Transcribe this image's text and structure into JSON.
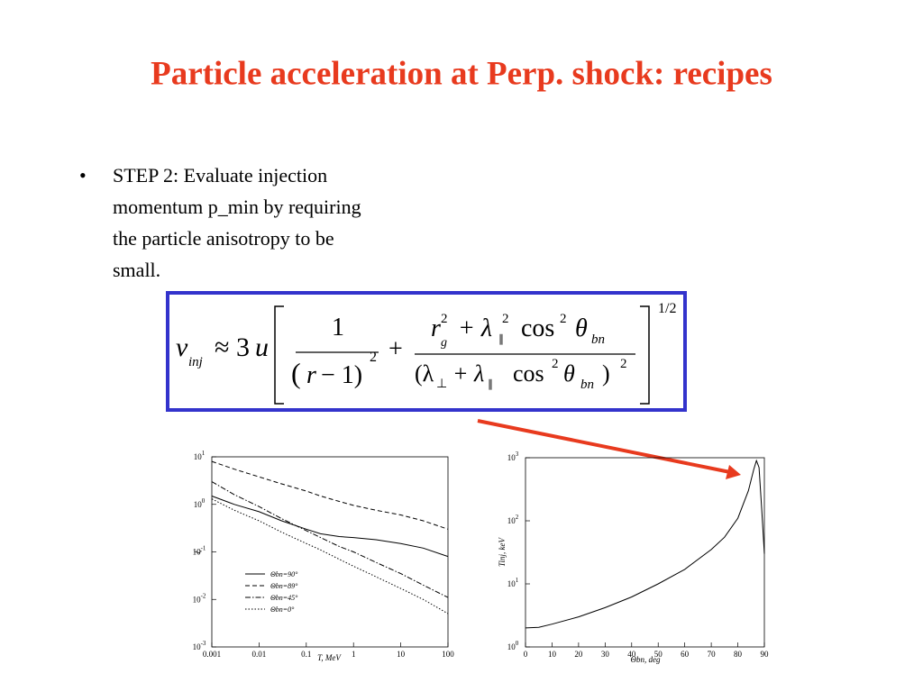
{
  "title": "Particle acceleration at Perp. shock: recipes",
  "bullet": {
    "lines": [
      "STEP 2: Evaluate injection",
      "momentum p_min by requiring",
      "the particle anisotropy to be",
      "small."
    ]
  },
  "formula": {
    "pieces": [
      "v",
      "inj",
      "≈ 3",
      "u",
      "1",
      "(",
      "r",
      "− 1)",
      "2",
      "+",
      "r",
      "g",
      "2",
      "+ λ",
      "∥",
      "2",
      "cos",
      "2",
      "θ",
      "bn",
      "(λ",
      "⊥",
      "+ λ",
      "∥",
      "cos",
      "2",
      "θ",
      "bn",
      ")",
      "2",
      "1/2"
    ]
  },
  "chart_data": [
    {
      "type": "line",
      "xlabel": "T, MeV",
      "ylabel": "ξ",
      "xscale": "log",
      "yscale": "log",
      "xlim": [
        0.001,
        100
      ],
      "ylim": [
        0.001,
        10
      ],
      "xticks": [
        0.001,
        0.01,
        0.1,
        1,
        10,
        100
      ],
      "yticks": [
        {
          "value": 0.001,
          "label": "10",
          "exponent": "-3"
        },
        {
          "value": 0.01,
          "label": "10",
          "exponent": "-2"
        },
        {
          "value": 0.1,
          "label": "10",
          "exponent": "-1"
        },
        {
          "value": 1,
          "label": "10",
          "exponent": "0"
        },
        {
          "value": 10,
          "label": "10",
          "exponent": "1"
        }
      ],
      "legend": "lower left",
      "x": [
        0.001,
        0.003,
        0.01,
        0.03,
        0.1,
        0.2,
        0.5,
        1,
        3,
        10,
        30,
        100
      ],
      "series": [
        {
          "name": "Θbn=90°",
          "color": "#000000",
          "linestyle": "solid",
          "values": [
            1.5,
            1.0,
            0.7,
            0.45,
            0.3,
            0.24,
            0.21,
            0.2,
            0.18,
            0.15,
            0.12,
            0.08
          ]
        },
        {
          "name": "Θbn=89°",
          "color": "#000000",
          "linestyle": "dashed",
          "values": [
            8,
            5.5,
            3.8,
            2.7,
            1.9,
            1.5,
            1.15,
            0.95,
            0.75,
            0.6,
            0.45,
            0.3
          ]
        },
        {
          "name": "Θbn=45°",
          "color": "#000000",
          "linestyle": "dashdot",
          "values": [
            3,
            1.6,
            0.9,
            0.5,
            0.28,
            0.2,
            0.13,
            0.1,
            0.06,
            0.035,
            0.02,
            0.011
          ]
        },
        {
          "name": "Θbn=0°",
          "color": "#000000",
          "linestyle": "dotted",
          "values": [
            1.3,
            0.75,
            0.45,
            0.26,
            0.15,
            0.11,
            0.07,
            0.05,
            0.03,
            0.017,
            0.01,
            0.005
          ]
        }
      ]
    },
    {
      "type": "line",
      "xlabel": "Θbn, deg",
      "ylabel": "Tinj, keV",
      "xscale": "linear",
      "yscale": "log",
      "xlim": [
        0,
        90
      ],
      "ylim": [
        1,
        1000
      ],
      "xticks": [
        0,
        10,
        20,
        30,
        40,
        50,
        60,
        70,
        80,
        90
      ],
      "yticks": [
        {
          "value": 1,
          "label": "10",
          "exponent": "0"
        },
        {
          "value": 10,
          "label": "10",
          "exponent": "1"
        },
        {
          "value": 100,
          "label": "10",
          "exponent": "2"
        },
        {
          "value": 1000,
          "label": "10",
          "exponent": "3"
        }
      ],
      "x": [
        0,
        5,
        10,
        20,
        30,
        40,
        50,
        60,
        70,
        75,
        80,
        84,
        86,
        87,
        88,
        89,
        90
      ],
      "series": [
        {
          "color": "#000000",
          "linestyle": "solid",
          "values": [
            2,
            2.05,
            2.3,
            3,
            4.2,
            6.2,
            10,
            17,
            35,
            55,
            110,
            300,
            650,
            900,
            700,
            150,
            30
          ]
        }
      ]
    }
  ]
}
